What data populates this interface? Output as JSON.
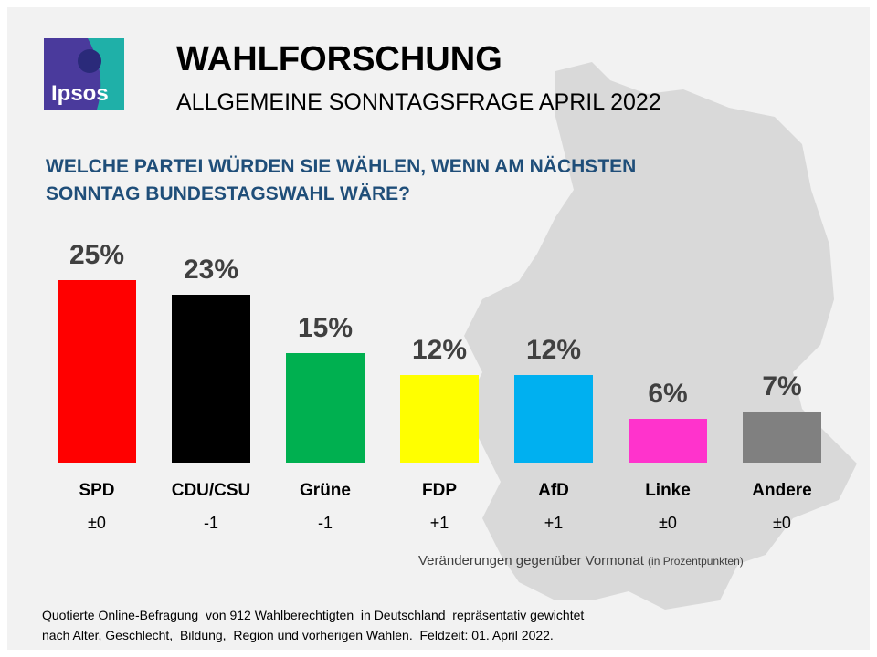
{
  "header": {
    "logo_text": "Ipsos",
    "title": "WAHLFORSCHUNG",
    "subtitle": "ALLGEMEINE SONNTAGSFRAGE APRIL 2022"
  },
  "question": "WELCHE PARTEI WÜRDEN SIE WÄHLEN, WENN AM NÄCHSTEN SONNTAG BUNDESTAGSWAHL WÄRE?",
  "chart_data": {
    "type": "bar",
    "title": "WELCHE PARTEI WÜRDEN SIE WÄHLEN, WENN AM NÄCHSTEN SONNTAG BUNDESTAGSWAHL WÄRE?",
    "categories": [
      "SPD",
      "CDU/CSU",
      "Grüne",
      "FDP",
      "AfD",
      "Linke",
      "Andere"
    ],
    "values": [
      25,
      23,
      15,
      12,
      12,
      6,
      7
    ],
    "value_labels": [
      "25%",
      "23%",
      "15%",
      "12%",
      "12%",
      "6%",
      "7%"
    ],
    "changes": [
      "±0",
      "-1",
      "-1",
      "+1",
      "+1",
      "±0",
      "±0"
    ],
    "colors": [
      "#ff0000",
      "#000000",
      "#00b050",
      "#ffff00",
      "#00b0f0",
      "#ff33cc",
      "#808080"
    ],
    "ylim": [
      0,
      25
    ],
    "grid": false,
    "changes_label": "Veränderungen gegenüber Vormonat",
    "changes_unit": "(in Prozentpunkten)"
  },
  "footer": {
    "line1": "Quotierte Online-Befragung  von 912 Wahlberechtigten  in Deutschland  repräsentativ gewichtet",
    "line2": "nach Alter, Geschlecht,  Bildung,  Region und vorherigen Wahlen.  Feldzeit: 01. April 2022."
  }
}
